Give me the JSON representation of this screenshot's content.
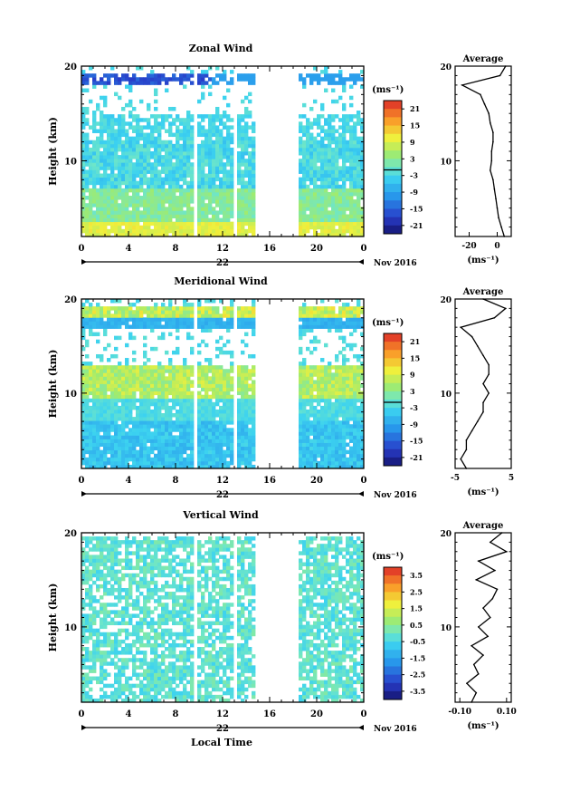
{
  "figure": {
    "date_label": "Nov 2016",
    "xlabel_bottom": "Local Time"
  },
  "chart_data": [
    {
      "type": "heatmap",
      "title": "Zonal Wind",
      "ylabel": "Height (km)",
      "unit_label": "(ms⁻¹)",
      "ylim": [
        2,
        20
      ],
      "yticks": [
        10,
        20
      ],
      "xlim": [
        0,
        24
      ],
      "xticks": [
        "0",
        "4",
        "8",
        "12",
        "16",
        "20",
        "0"
      ],
      "day_label": "22",
      "colorbar": {
        "ticks": [
          "21",
          "15",
          "9",
          "3",
          "-3",
          "-9",
          "-15",
          "-21"
        ],
        "vmin": -24,
        "vmax": 24
      },
      "gaps_hours": [
        [
          9.5,
          9.9
        ],
        [
          12.8,
          13.1
        ],
        [
          14.8,
          18.6
        ]
      ],
      "profile": {
        "title": "Average",
        "xticks": [
          "-20",
          "0"
        ],
        "xlim": [
          -30,
          10
        ],
        "unit_label": "(ms⁻¹)",
        "heights": [
          2,
          3,
          4,
          5,
          6,
          7,
          8,
          9,
          10,
          11,
          12,
          13,
          14,
          15,
          16,
          17,
          18,
          19,
          20
        ],
        "values": [
          5,
          3,
          1,
          0,
          -1,
          -2,
          -3,
          -5,
          -4,
          -4,
          -3,
          -3,
          -5,
          -6,
          -9,
          -12,
          -25,
          2,
          6
        ]
      }
    },
    {
      "type": "heatmap",
      "title": "Meridional Wind",
      "ylabel": "Height (km)",
      "unit_label": "(ms⁻¹)",
      "ylim": [
        2,
        20
      ],
      "yticks": [
        10,
        20
      ],
      "xlim": [
        0,
        24
      ],
      "xticks": [
        "0",
        "4",
        "8",
        "12",
        "16",
        "20",
        "0"
      ],
      "day_label": "22",
      "colorbar": {
        "ticks": [
          "21",
          "15",
          "9",
          "3",
          "-3",
          "-9",
          "-15",
          "-21"
        ],
        "vmin": -24,
        "vmax": 24
      },
      "gaps_hours": [
        [
          9.5,
          9.9
        ],
        [
          12.8,
          13.1
        ],
        [
          14.8,
          18.6
        ]
      ],
      "profile": {
        "title": "Average",
        "xticks": [
          "-5",
          "5"
        ],
        "xlim": [
          -5,
          5
        ],
        "unit_label": "(ms⁻¹)",
        "heights": [
          2,
          3,
          4,
          5,
          6,
          7,
          8,
          9,
          10,
          11,
          12,
          13,
          14,
          15,
          16,
          17,
          18,
          19,
          20
        ],
        "values": [
          -3,
          -4,
          -3,
          -3,
          -2,
          -1,
          0,
          0,
          1,
          0,
          1,
          1,
          0,
          -1,
          -2,
          -4,
          2,
          4,
          0
        ]
      }
    },
    {
      "type": "heatmap",
      "title": "Vertical Wind",
      "ylabel": "Height (km)",
      "unit_label": "(ms⁻¹)",
      "ylim": [
        2,
        20
      ],
      "yticks": [
        10,
        20
      ],
      "xlim": [
        0,
        24
      ],
      "xticks": [
        "0",
        "4",
        "8",
        "12",
        "16",
        "20",
        "0"
      ],
      "day_label": "22",
      "colorbar": {
        "ticks": [
          "3.5",
          "2.5",
          "1.5",
          "0.5",
          "-0.5",
          "-1.5",
          "-2.5",
          "-3.5"
        ],
        "vmin": -4,
        "vmax": 4
      },
      "gaps_hours": [
        [
          9.5,
          9.9
        ],
        [
          12.8,
          13.1
        ],
        [
          14.8,
          18.6
        ]
      ],
      "profile": {
        "title": "Average",
        "xticks": [
          "-0.10",
          "0.10"
        ],
        "xlim": [
          -0.12,
          0.12
        ],
        "unit_label": "(ms⁻¹)",
        "heights": [
          2,
          3,
          4,
          5,
          6,
          7,
          8,
          9,
          10,
          11,
          12,
          13,
          14,
          15,
          16,
          17,
          18,
          19,
          20
        ],
        "values": [
          -0.05,
          -0.03,
          -0.07,
          -0.02,
          -0.04,
          0.0,
          -0.05,
          0.02,
          -0.02,
          0.03,
          0.0,
          0.04,
          0.06,
          -0.03,
          0.05,
          -0.02,
          0.1,
          0.03,
          0.08
        ]
      }
    }
  ]
}
